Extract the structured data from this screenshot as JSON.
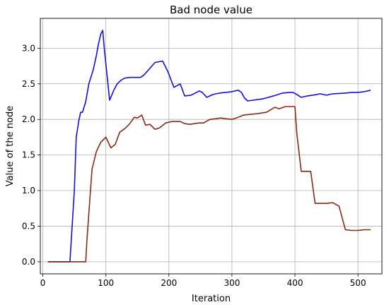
{
  "chart_data": {
    "type": "line",
    "title": "Bad node value",
    "xlabel": "Iteration",
    "ylabel": "Value of the node",
    "xlim": [
      -4,
      538
    ],
    "ylim": [
      -0.17,
      3.42
    ],
    "xticks": [
      0,
      100,
      200,
      300,
      400,
      500
    ],
    "yticks": [
      0.0,
      0.5,
      1.0,
      1.5,
      2.0,
      2.5,
      3.0
    ],
    "xtick_labels": [
      "0",
      "100",
      "200",
      "300",
      "400",
      "500"
    ],
    "ytick_labels": [
      "0.0",
      "0.5",
      "1.0",
      "1.5",
      "2.0",
      "2.5",
      "3.0"
    ],
    "grid": true,
    "legend": "none",
    "series": [
      {
        "color": "#1010e0",
        "x": [
          8,
          43,
          50,
          53,
          57,
          60,
          63,
          68,
          73,
          80,
          85,
          88,
          92,
          95,
          98,
          106,
          112,
          118,
          124,
          130,
          138,
          155,
          160,
          168,
          178,
          190,
          198,
          208,
          218,
          225,
          235,
          248,
          253,
          260,
          270,
          280,
          290,
          300,
          310,
          315,
          320,
          325,
          350,
          370,
          380,
          392,
          397,
          403,
          410,
          420,
          435,
          440,
          450,
          460,
          480,
          490,
          500,
          510,
          520
        ],
        "y": [
          0.0,
          0.0,
          1.0,
          1.75,
          1.98,
          2.1,
          2.1,
          2.25,
          2.5,
          2.7,
          2.9,
          3.05,
          3.2,
          3.25,
          2.95,
          2.27,
          2.4,
          2.5,
          2.55,
          2.58,
          2.59,
          2.59,
          2.62,
          2.7,
          2.8,
          2.82,
          2.68,
          2.45,
          2.5,
          2.33,
          2.34,
          2.4,
          2.38,
          2.31,
          2.35,
          2.37,
          2.38,
          2.39,
          2.41,
          2.38,
          2.3,
          2.26,
          2.29,
          2.34,
          2.37,
          2.38,
          2.38,
          2.35,
          2.31,
          2.33,
          2.35,
          2.36,
          2.34,
          2.36,
          2.37,
          2.38,
          2.38,
          2.39,
          2.41
        ]
      },
      {
        "color": "#8b2a14",
        "x": [
          8,
          68,
          70,
          78,
          85,
          92,
          100,
          108,
          115,
          122,
          130,
          137,
          145,
          150,
          157,
          163,
          170,
          178,
          185,
          195,
          205,
          218,
          225,
          233,
          248,
          255,
          265,
          275,
          282,
          290,
          300,
          310,
          318,
          340,
          355,
          368,
          375,
          385,
          392,
          400,
          403,
          410,
          418,
          425,
          432,
          440,
          450,
          460,
          470,
          480,
          490,
          500,
          510,
          520
        ],
        "y": [
          0.0,
          0.0,
          0.3,
          1.3,
          1.55,
          1.68,
          1.75,
          1.6,
          1.65,
          1.82,
          1.87,
          1.93,
          2.03,
          2.02,
          2.06,
          1.92,
          1.93,
          1.86,
          1.88,
          1.95,
          1.97,
          1.97,
          1.94,
          1.93,
          1.95,
          1.95,
          2.0,
          2.01,
          2.02,
          2.01,
          2.0,
          2.03,
          2.06,
          2.08,
          2.1,
          2.17,
          2.15,
          2.18,
          2.18,
          2.18,
          1.8,
          1.27,
          1.27,
          1.27,
          0.82,
          0.82,
          0.82,
          0.83,
          0.78,
          0.45,
          0.44,
          0.44,
          0.45,
          0.45
        ]
      }
    ]
  }
}
